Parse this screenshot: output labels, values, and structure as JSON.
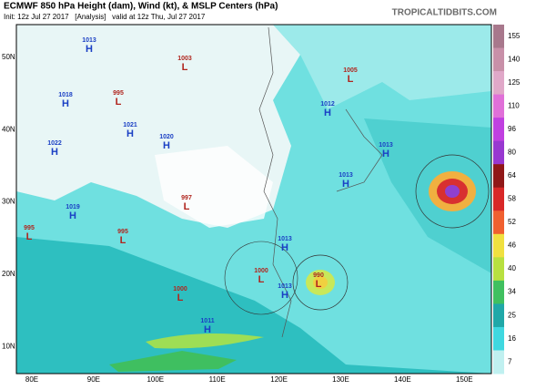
{
  "header": {
    "title": "ECMWF 850 hPa Height (dam), Wind (kt), & MSLP Centers (hPa)",
    "subtitle": "Init: 12z Jul 27 2017   [Analysis]   valid at 12z Thu, Jul 27 2017",
    "source": "TROPICALTIDBITS.COM"
  },
  "map": {
    "latitudes": [
      "50N",
      "40N",
      "30N",
      "20N",
      "10N"
    ],
    "longitudes": [
      "80E",
      "90E",
      "100E",
      "110E",
      "120E",
      "130E",
      "140E",
      "150E"
    ],
    "high_color": "#1a3fc4",
    "low_color": "#b0251e",
    "centers": [
      {
        "kind": "H",
        "value": "1013"
      },
      {
        "kind": "L",
        "value": "1003"
      },
      {
        "kind": "L",
        "value": "1005"
      },
      {
        "kind": "H",
        "value": "1018"
      },
      {
        "kind": "L",
        "value": "995"
      },
      {
        "kind": "H",
        "value": "1012"
      },
      {
        "kind": "H",
        "value": "1021"
      },
      {
        "kind": "H",
        "value": "1020"
      },
      {
        "kind": "H",
        "value": "1022"
      },
      {
        "kind": "H",
        "value": "1013"
      },
      {
        "kind": "L",
        "value": "997"
      },
      {
        "kind": "H",
        "value": "1013"
      },
      {
        "kind": "H",
        "value": "1019"
      },
      {
        "kind": "L",
        "value": "995"
      },
      {
        "kind": "L",
        "value": "995"
      },
      {
        "kind": "H",
        "value": "1013"
      },
      {
        "kind": "L",
        "value": "1000"
      },
      {
        "kind": "L",
        "value": "990"
      },
      {
        "kind": "H",
        "value": "1013"
      },
      {
        "kind": "L",
        "value": "1000"
      },
      {
        "kind": "H",
        "value": "1011"
      }
    ]
  },
  "colorbar": {
    "ticks": [
      155,
      140,
      125,
      110,
      96,
      80,
      64,
      58,
      52,
      46,
      40,
      34,
      25,
      16,
      7
    ],
    "colors": [
      "#a8788c",
      "#c890a8",
      "#e0a8c8",
      "#e070d8",
      "#c040e0",
      "#9838d0",
      "#901818",
      "#d82828",
      "#f06030",
      "#f0e040",
      "#b8e040",
      "#40c060",
      "#20a8a8",
      "#40d8e0",
      "#c0f0f0"
    ]
  }
}
